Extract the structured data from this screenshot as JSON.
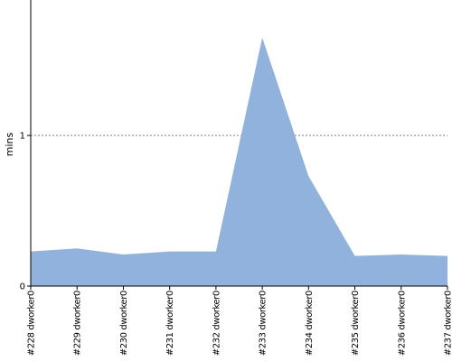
{
  "chart_data": {
    "type": "area",
    "title": "",
    "xlabel": "",
    "ylabel": "mins",
    "ylim": [
      0,
      1.9
    ],
    "yticks": [
      0,
      1
    ],
    "ytick_labels": [
      "0",
      "1"
    ],
    "grid": "dotted horizontal line at y=1",
    "legend": "none",
    "categories": [
      "#228 dworker0",
      "#229 dworker0",
      "#230 dworker0",
      "#231 dworker0",
      "#232 dworker0",
      "#233 dworker0",
      "#234 dworker0",
      "#235 dworker0",
      "#236 dworker0",
      "#237 dworker0"
    ],
    "series": [
      {
        "values": [
          0.23,
          0.25,
          0.21,
          0.23,
          0.23,
          1.65,
          0.73,
          0.2,
          0.21,
          0.2
        ],
        "color": "#90b2dc"
      }
    ],
    "colors": {
      "area_fill": "#90b2dc",
      "axis": "#000000",
      "grid": "#808080"
    }
  }
}
